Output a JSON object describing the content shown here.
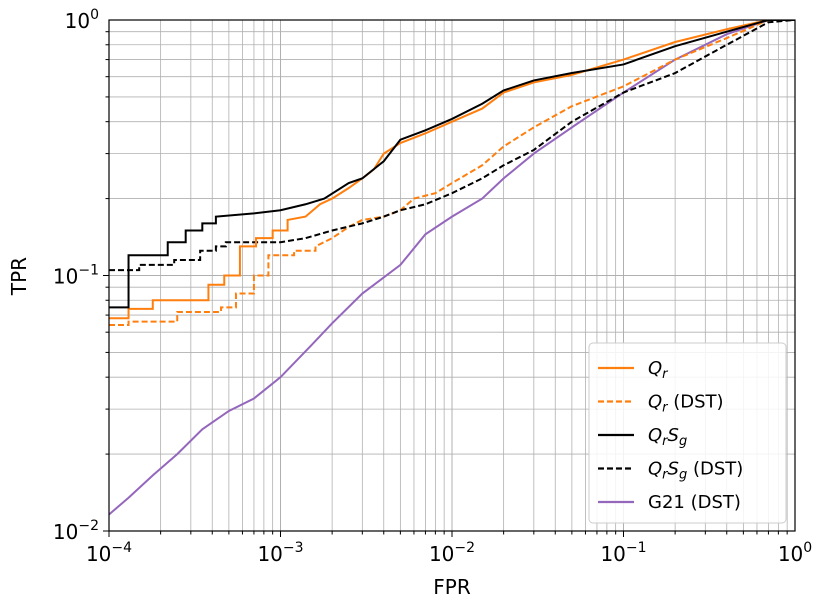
{
  "chart_data": {
    "type": "line",
    "xlabel": "FPR",
    "ylabel": "TPR",
    "xscale": "log",
    "yscale": "log",
    "xlim": [
      0.0001,
      1
    ],
    "ylim": [
      0.01,
      1
    ],
    "grid": true,
    "legend_position": "bottom-right",
    "x_ticks": [
      {
        "base": "10",
        "exp": "−4"
      },
      {
        "base": "10",
        "exp": "−3"
      },
      {
        "base": "10",
        "exp": "−2"
      },
      {
        "base": "10",
        "exp": "−1"
      },
      {
        "base": "10",
        "exp": "0"
      }
    ],
    "y_ticks": [
      {
        "base": "10",
        "exp": "−2"
      },
      {
        "base": "10",
        "exp": "−1"
      },
      {
        "base": "10",
        "exp": "0"
      }
    ],
    "series": [
      {
        "name": "Q_r",
        "legend_main": "Q",
        "legend_sub": "r",
        "legend_suffix": "",
        "color": "#ff7f0e",
        "dash": "solid",
        "points": [
          [
            0.0001,
            0.068
          ],
          [
            0.00013,
            0.068
          ],
          [
            0.00013,
            0.074
          ],
          [
            0.00018,
            0.074
          ],
          [
            0.00018,
            0.08
          ],
          [
            0.00038,
            0.08
          ],
          [
            0.00038,
            0.092
          ],
          [
            0.00047,
            0.092
          ],
          [
            0.00047,
            0.1
          ],
          [
            0.00058,
            0.1
          ],
          [
            0.00058,
            0.13
          ],
          [
            0.00072,
            0.13
          ],
          [
            0.00072,
            0.14
          ],
          [
            0.0009,
            0.14
          ],
          [
            0.0009,
            0.15
          ],
          [
            0.0011,
            0.15
          ],
          [
            0.0011,
            0.165
          ],
          [
            0.0014,
            0.17
          ],
          [
            0.0017,
            0.19
          ],
          [
            0.002,
            0.2
          ],
          [
            0.0025,
            0.22
          ],
          [
            0.003,
            0.24
          ],
          [
            0.0035,
            0.26
          ],
          [
            0.004,
            0.3
          ],
          [
            0.005,
            0.33
          ],
          [
            0.007,
            0.36
          ],
          [
            0.01,
            0.4
          ],
          [
            0.015,
            0.45
          ],
          [
            0.02,
            0.52
          ],
          [
            0.03,
            0.57
          ],
          [
            0.05,
            0.61
          ],
          [
            0.1,
            0.7
          ],
          [
            0.2,
            0.82
          ],
          [
            0.4,
            0.92
          ],
          [
            0.7,
            1.0
          ],
          [
            1,
            1.0
          ]
        ]
      },
      {
        "name": "Q_r (DST)",
        "legend_main": "Q",
        "legend_sub": "r",
        "legend_suffix": " (DST)",
        "color": "#ff7f0e",
        "dash": "dashed",
        "points": [
          [
            0.0001,
            0.064
          ],
          [
            0.00013,
            0.064
          ],
          [
            0.00013,
            0.066
          ],
          [
            0.00025,
            0.066
          ],
          [
            0.00025,
            0.072
          ],
          [
            0.00045,
            0.072
          ],
          [
            0.00045,
            0.075
          ],
          [
            0.00055,
            0.075
          ],
          [
            0.00055,
            0.085
          ],
          [
            0.0007,
            0.085
          ],
          [
            0.0007,
            0.1
          ],
          [
            0.00085,
            0.1
          ],
          [
            0.00085,
            0.12
          ],
          [
            0.0012,
            0.12
          ],
          [
            0.0012,
            0.125
          ],
          [
            0.0016,
            0.125
          ],
          [
            0.0016,
            0.13
          ],
          [
            0.002,
            0.14
          ],
          [
            0.0025,
            0.155
          ],
          [
            0.003,
            0.165
          ],
          [
            0.004,
            0.17
          ],
          [
            0.005,
            0.18
          ],
          [
            0.006,
            0.2
          ],
          [
            0.008,
            0.21
          ],
          [
            0.01,
            0.23
          ],
          [
            0.015,
            0.27
          ],
          [
            0.02,
            0.32
          ],
          [
            0.03,
            0.38
          ],
          [
            0.05,
            0.46
          ],
          [
            0.1,
            0.55
          ],
          [
            0.2,
            0.7
          ],
          [
            0.4,
            0.85
          ],
          [
            0.7,
            1.0
          ],
          [
            1,
            1.0
          ]
        ]
      },
      {
        "name": "Q_rS_g",
        "legend_main": "Q",
        "legend_sub": "r",
        "legend_main2": "S",
        "legend_sub2": "g",
        "legend_suffix": "",
        "color": "#000000",
        "dash": "solid",
        "points": [
          [
            0.0001,
            0.075
          ],
          [
            0.00013,
            0.075
          ],
          [
            0.00013,
            0.12
          ],
          [
            0.00022,
            0.12
          ],
          [
            0.00022,
            0.135
          ],
          [
            0.00028,
            0.135
          ],
          [
            0.00028,
            0.15
          ],
          [
            0.00035,
            0.15
          ],
          [
            0.00035,
            0.16
          ],
          [
            0.00042,
            0.16
          ],
          [
            0.00042,
            0.17
          ],
          [
            0.0007,
            0.175
          ],
          [
            0.001,
            0.18
          ],
          [
            0.0014,
            0.19
          ],
          [
            0.0018,
            0.2
          ],
          [
            0.0025,
            0.23
          ],
          [
            0.003,
            0.24
          ],
          [
            0.004,
            0.28
          ],
          [
            0.005,
            0.34
          ],
          [
            0.007,
            0.37
          ],
          [
            0.01,
            0.41
          ],
          [
            0.015,
            0.47
          ],
          [
            0.02,
            0.53
          ],
          [
            0.03,
            0.58
          ],
          [
            0.05,
            0.62
          ],
          [
            0.1,
            0.67
          ],
          [
            0.2,
            0.79
          ],
          [
            0.4,
            0.9
          ],
          [
            0.7,
            1.0
          ],
          [
            1,
            1.0
          ]
        ]
      },
      {
        "name": "Q_rS_g (DST)",
        "legend_main": "Q",
        "legend_sub": "r",
        "legend_main2": "S",
        "legend_sub2": "g",
        "legend_suffix": " (DST)",
        "color": "#000000",
        "dash": "dashed",
        "points": [
          [
            0.0001,
            0.105
          ],
          [
            0.00015,
            0.105
          ],
          [
            0.00015,
            0.11
          ],
          [
            0.00024,
            0.11
          ],
          [
            0.00024,
            0.115
          ],
          [
            0.00034,
            0.115
          ],
          [
            0.00034,
            0.125
          ],
          [
            0.00042,
            0.125
          ],
          [
            0.00042,
            0.13
          ],
          [
            0.00048,
            0.13
          ],
          [
            0.00048,
            0.135
          ],
          [
            0.001,
            0.135
          ],
          [
            0.0014,
            0.14
          ],
          [
            0.002,
            0.15
          ],
          [
            0.003,
            0.16
          ],
          [
            0.004,
            0.17
          ],
          [
            0.005,
            0.18
          ],
          [
            0.007,
            0.19
          ],
          [
            0.01,
            0.21
          ],
          [
            0.015,
            0.24
          ],
          [
            0.02,
            0.27
          ],
          [
            0.03,
            0.31
          ],
          [
            0.05,
            0.4
          ],
          [
            0.1,
            0.52
          ],
          [
            0.2,
            0.62
          ],
          [
            0.4,
            0.8
          ],
          [
            0.7,
            0.98
          ],
          [
            1,
            1.0
          ]
        ]
      },
      {
        "name": "G21 (DST)",
        "legend_main": "G21 (DST)",
        "legend_sub": "",
        "legend_suffix": "",
        "color": "#9467bd",
        "dash": "solid",
        "points": [
          [
            0.0001,
            0.0116
          ],
          [
            0.00013,
            0.0135
          ],
          [
            0.00018,
            0.0165
          ],
          [
            0.00025,
            0.02
          ],
          [
            0.00035,
            0.025
          ],
          [
            0.0005,
            0.0295
          ],
          [
            0.0007,
            0.033
          ],
          [
            0.001,
            0.04
          ],
          [
            0.0015,
            0.053
          ],
          [
            0.002,
            0.065
          ],
          [
            0.003,
            0.085
          ],
          [
            0.005,
            0.11
          ],
          [
            0.007,
            0.145
          ],
          [
            0.01,
            0.17
          ],
          [
            0.015,
            0.2
          ],
          [
            0.02,
            0.24
          ],
          [
            0.03,
            0.3
          ],
          [
            0.05,
            0.38
          ],
          [
            0.1,
            0.52
          ],
          [
            0.2,
            0.7
          ],
          [
            0.4,
            0.88
          ],
          [
            0.7,
            1.0
          ],
          [
            1,
            1.0
          ]
        ]
      }
    ]
  }
}
